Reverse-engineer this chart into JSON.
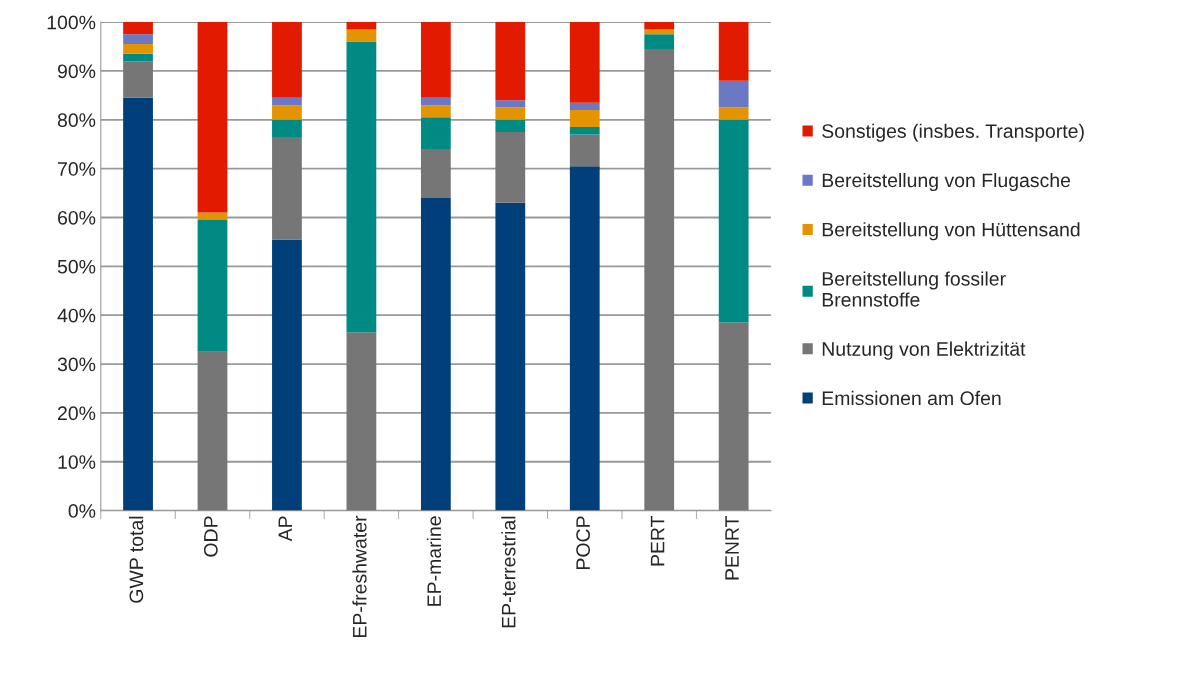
{
  "chart_data": {
    "type": "bar",
    "stacked": true,
    "categories": [
      "GWP total",
      "ODP",
      "AP",
      "EP-freshwater",
      "EP-marine",
      "EP-terrestrial",
      "POCP",
      "PERT",
      "PENRT"
    ],
    "series": [
      {
        "name": "Emissionen am Ofen",
        "color": "#003f7a",
        "values": [
          84.5,
          0,
          55.5,
          0,
          64,
          63,
          70.5,
          0,
          0
        ]
      },
      {
        "name": "Nutzung von Elektrizität",
        "color": "#767676",
        "values": [
          7.5,
          32.5,
          21,
          36.5,
          10,
          14.5,
          6.5,
          94.5,
          38.5
        ]
      },
      {
        "name": "Bereitstellung fossiler\nBrennstoffe",
        "color": "#008a84",
        "values": [
          1.5,
          27,
          3.5,
          59.5,
          6.5,
          2.5,
          1.5,
          3,
          41.5
        ]
      },
      {
        "name": "Bereitstellung von Hüttensand",
        "color": "#e39400",
        "values": [
          2,
          1.5,
          3,
          2.5,
          2.5,
          2.5,
          3.5,
          1,
          2.5
        ]
      },
      {
        "name": "Bereitstellung von Flugasche",
        "color": "#6b78c4",
        "values": [
          2,
          0,
          1.5,
          0,
          1.5,
          1.5,
          1.5,
          0,
          5.5
        ]
      },
      {
        "name": "Sonstiges (insbes. Transporte)",
        "color": "#e21a00",
        "values": [
          2.5,
          39,
          15.5,
          1.5,
          15.5,
          16,
          16.5,
          1.5,
          12
        ]
      }
    ],
    "ylim": [
      0,
      100
    ],
    "yticks": [
      {
        "value": 0,
        "label": "0%"
      },
      {
        "value": 10,
        "label": "10%"
      },
      {
        "value": 20,
        "label": "20%"
      },
      {
        "value": 30,
        "label": "30%"
      },
      {
        "value": 40,
        "label": "40%"
      },
      {
        "value": 50,
        "label": "50%"
      },
      {
        "value": 60,
        "label": "60%"
      },
      {
        "value": 70,
        "label": "70%"
      },
      {
        "value": 80,
        "label": "80%"
      },
      {
        "value": 90,
        "label": "90%"
      },
      {
        "value": 100,
        "label": "100%"
      }
    ],
    "grid": "y",
    "legend": "right"
  }
}
